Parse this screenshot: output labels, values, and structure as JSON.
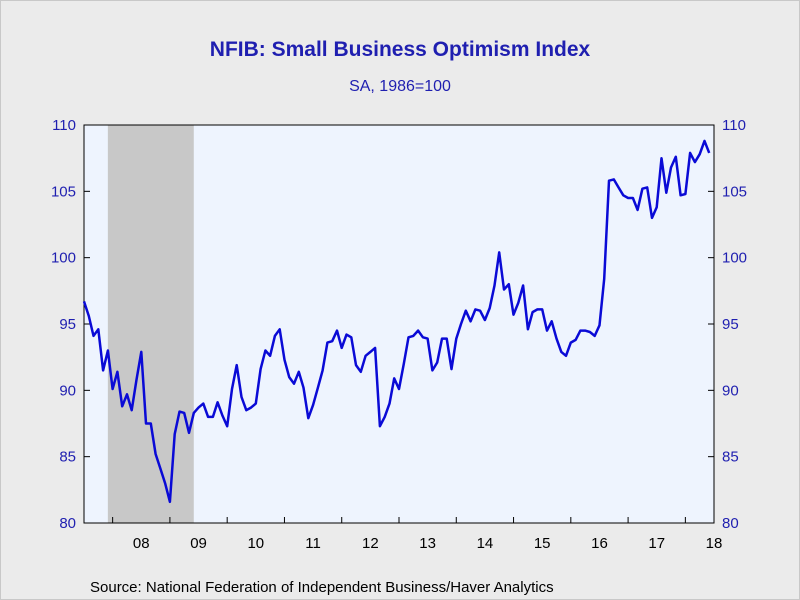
{
  "chart_data": {
    "type": "line",
    "title": "NFIB: Small Business Optimism Index",
    "subtitle": "SA, 1986=100",
    "source": "Source:  National Federation of Independent Business/Haver Analytics",
    "ylim": [
      80,
      110
    ],
    "yticks": [
      "80",
      "85",
      "90",
      "95",
      "100",
      "105",
      "110"
    ],
    "x_tick_labels": [
      "08",
      "09",
      "10",
      "11",
      "12",
      "13",
      "14",
      "15",
      "16",
      "17",
      "18"
    ],
    "x_range_months": [
      "2007-07",
      "2018-07"
    ],
    "recession": {
      "start": "2007-12",
      "end": "2009-06",
      "color": "#c8c8c8"
    },
    "plot_background": "#eef4fe",
    "grid": false,
    "series": [
      {
        "color": "#0a0ad6",
        "start": "2007-07",
        "values": [
          96.7,
          95.6,
          94.1,
          94.6,
          91.5,
          93.0,
          90.1,
          91.4,
          88.8,
          89.7,
          88.5,
          90.8,
          92.9,
          87.5,
          87.5,
          85.2,
          84.1,
          83.0,
          81.6,
          86.7,
          88.4,
          88.3,
          86.8,
          88.3,
          88.7,
          89.0,
          88.0,
          88.0,
          89.1,
          88.1,
          87.3,
          90.1,
          91.9,
          89.5,
          88.5,
          88.7,
          89.0,
          91.6,
          93.0,
          92.6,
          94.1,
          94.6,
          92.3,
          91.0,
          90.5,
          91.4,
          90.2,
          87.9,
          88.9,
          90.2,
          91.5,
          93.6,
          93.7,
          94.5,
          93.2,
          94.2,
          94.0,
          91.9,
          91.4,
          92.6,
          92.9,
          93.2,
          87.3,
          88.0,
          89.0,
          90.9,
          90.1,
          92.0,
          94.0,
          94.1,
          94.5,
          94.0,
          93.9,
          91.5,
          92.1,
          93.9,
          93.9,
          91.6,
          93.9,
          95.0,
          96.0,
          95.2,
          96.1,
          96.0,
          95.3,
          96.2,
          97.9,
          100.4,
          97.6,
          98.0,
          95.7,
          96.6,
          97.9,
          94.6,
          95.9,
          96.1,
          96.1,
          94.5,
          95.2,
          93.9,
          92.9,
          92.6,
          93.6,
          93.8,
          94.5,
          94.5,
          94.4,
          94.1,
          94.9,
          98.4,
          105.8,
          105.9,
          105.3,
          104.7,
          104.5,
          104.5,
          103.6,
          105.2,
          105.3,
          103.0,
          103.8,
          107.5,
          104.9,
          106.8,
          107.6,
          104.7,
          104.8,
          107.9,
          107.2,
          107.8,
          108.8,
          107.9
        ]
      }
    ]
  }
}
